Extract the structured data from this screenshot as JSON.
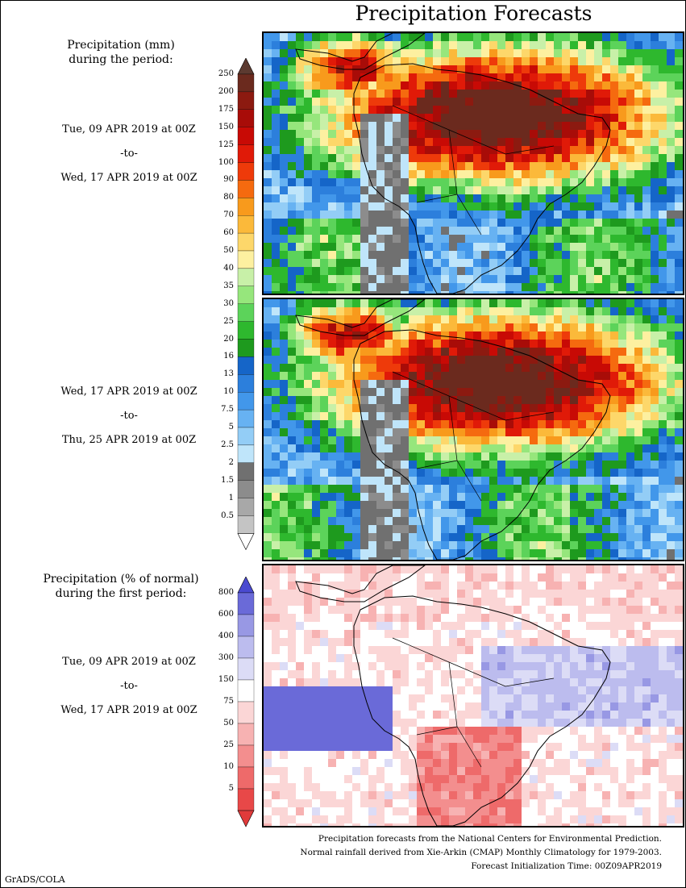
{
  "title": "Precipitation Forecasts",
  "legend_top": {
    "title_line1": "Precipitation (mm)",
    "title_line2": "during the period:",
    "ticks": [
      "250",
      "200",
      "175",
      "150",
      "125",
      "100",
      "90",
      "80",
      "70",
      "60",
      "50",
      "40",
      "35",
      "30",
      "25",
      "20",
      "16",
      "13",
      "10",
      "7.5",
      "5",
      "2.5",
      "2",
      "1.5",
      "1",
      "0.5"
    ],
    "colors": [
      "#6b2a1e",
      "#8c1a10",
      "#a80c08",
      "#c80a05",
      "#e01a08",
      "#ee3a0a",
      "#f56a0f",
      "#f89a1c",
      "#fbb93a",
      "#fdd76a",
      "#fdf0a0",
      "#c8f0a8",
      "#96e67c",
      "#5cd35a",
      "#2eb82e",
      "#1e9a1e",
      "#1565c8",
      "#2c7fdc",
      "#4297ea",
      "#67b2f2",
      "#93cdf6",
      "#bfe5fa",
      "#707070",
      "#8c8c8c",
      "#a8a8a8",
      "#c4c4c4"
    ],
    "arrow_top_color": "#5c3a30",
    "arrow_bottom_color": "#ffffff"
  },
  "period1": {
    "start": "Tue, 09 APR 2019 at 00Z",
    "to": "-to-",
    "end": "Wed, 17 APR 2019 at 00Z"
  },
  "period2": {
    "start": "Wed, 17 APR 2019 at 00Z",
    "to": "-to-",
    "end": "Thu, 25 APR 2019 at 00Z"
  },
  "legend_bottom": {
    "title_line1": "Precipitation (% of normal)",
    "title_line2": "during the first period:",
    "ticks": [
      "800",
      "600",
      "400",
      "300",
      "150",
      "75",
      "50",
      "25",
      "10",
      "5"
    ],
    "colors": [
      "#6a6ad8",
      "#9898e4",
      "#bcbcee",
      "#dcdcf6",
      "#ffffff",
      "#fbd6d6",
      "#f7b2b2",
      "#f38e8e",
      "#ee6a6a",
      "#e84848"
    ],
    "arrow_top_color": "#4a4ad0",
    "arrow_bottom_color": "#e03a3a"
  },
  "period3": {
    "start": "Tue, 09 APR 2019 at 00Z",
    "to": "-to-",
    "end": "Wed, 17 APR 2019 at 00Z"
  },
  "footer": {
    "line1": "Precipitation forecasts from the National Centers for Environmental Prediction.",
    "line2": "Normal rainfall derived from Xie-Arkin (CMAP) Monthly Climatology for 1979-2003.",
    "line3": "Forecast Initialization Time: 00Z09APR2019"
  },
  "credit": "GrADS/COLA",
  "chart_data": [
    {
      "type": "heatmap",
      "title": "Precipitation Forecasts",
      "period": "Tue, 09 APR 2019 at 00Z -to- Wed, 17 APR 2019 at 00Z",
      "units": "mm",
      "color_levels": [
        0.5,
        1,
        1.5,
        2,
        2.5,
        5,
        7.5,
        10,
        13,
        16,
        20,
        25,
        30,
        35,
        40,
        50,
        60,
        70,
        80,
        90,
        100,
        125,
        150,
        175,
        200,
        250
      ]
    },
    {
      "type": "heatmap",
      "period": "Wed, 17 APR 2019 at 00Z -to- Thu, 25 APR 2019 at 00Z",
      "units": "mm",
      "color_levels": [
        0.5,
        1,
        1.5,
        2,
        2.5,
        5,
        7.5,
        10,
        13,
        16,
        20,
        25,
        30,
        35,
        40,
        50,
        60,
        70,
        80,
        90,
        100,
        125,
        150,
        175,
        200,
        250
      ]
    },
    {
      "type": "heatmap",
      "period": "Tue, 09 APR 2019 at 00Z -to- Wed, 17 APR 2019 at 00Z",
      "units": "% of normal",
      "color_levels": [
        5,
        10,
        25,
        50,
        75,
        150,
        300,
        400,
        600,
        800
      ]
    }
  ]
}
